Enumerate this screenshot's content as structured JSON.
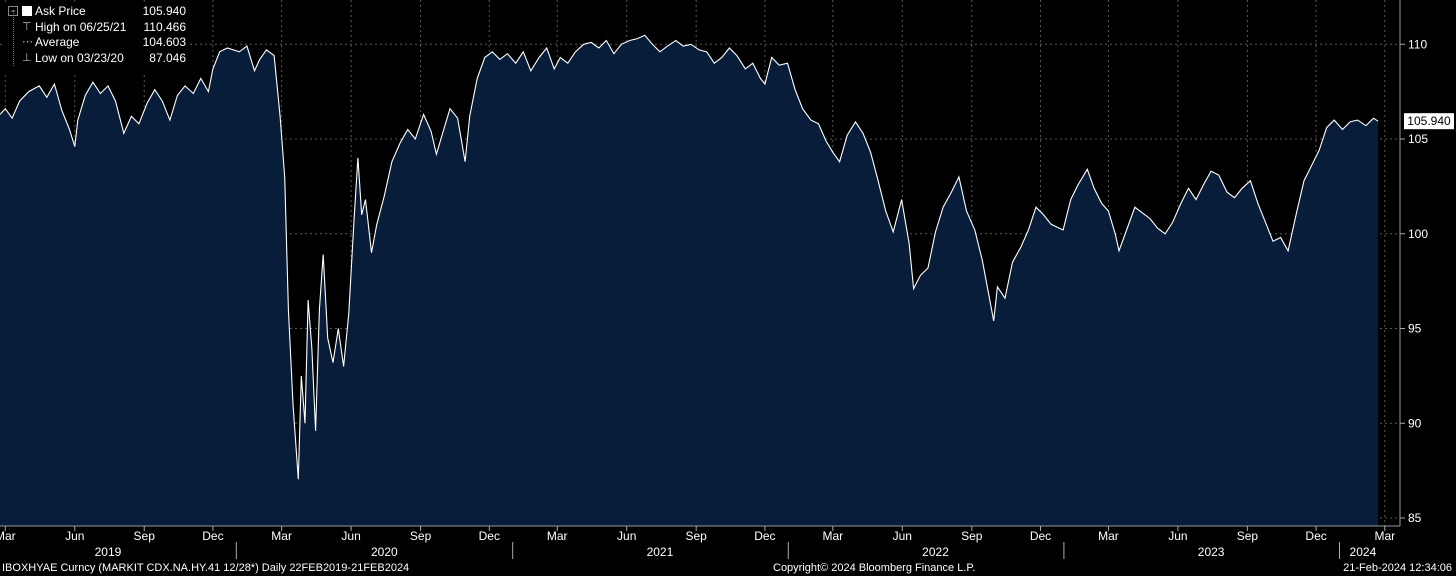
{
  "legend": {
    "ask_label": "Ask Price",
    "ask_value": "105.940",
    "high_label": "High on 06/25/21",
    "high_value": "110.466",
    "avg_label": "Average",
    "avg_value": "104.603",
    "low_label": "Low on 03/23/20",
    "low_value": "87.046"
  },
  "last_price_label": "105.940",
  "footer": {
    "left": "IBOXHYAE Curncy (MARKIT CDX.NA.HY.41 12/28*)  Daily 22FEB2019-21FEB2024",
    "center": "Copyright© 2024 Bloomberg Finance L.P.",
    "right": "21-Feb-2024 12:34:06"
  },
  "colors": {
    "background": "#000000",
    "area_fill": "#071d3a",
    "line": "#ffffff",
    "grid": "#555555"
  },
  "chart_data": {
    "type": "area",
    "title": "",
    "xlabel": "",
    "ylabel": "",
    "ylim": [
      85,
      112
    ],
    "y_ticks": [
      85,
      90,
      95,
      100,
      105,
      110
    ],
    "x_range": [
      "2019-02-22",
      "2024-02-21"
    ],
    "grid": true,
    "legend_position": "top-left",
    "x_tick_labels": [
      {
        "date": "2019-03-01",
        "label": "Mar"
      },
      {
        "date": "2019-06-01",
        "label": "Jun"
      },
      {
        "date": "2019-09-01",
        "label": "Sep"
      },
      {
        "date": "2019-12-01",
        "label": "Dec"
      },
      {
        "date": "2020-03-01",
        "label": "Mar"
      },
      {
        "date": "2020-06-01",
        "label": "Jun"
      },
      {
        "date": "2020-09-01",
        "label": "Sep"
      },
      {
        "date": "2020-12-01",
        "label": "Dec"
      },
      {
        "date": "2021-03-01",
        "label": "Mar"
      },
      {
        "date": "2021-06-01",
        "label": "Jun"
      },
      {
        "date": "2021-09-01",
        "label": "Sep"
      },
      {
        "date": "2021-12-01",
        "label": "Dec"
      },
      {
        "date": "2022-03-01",
        "label": "Mar"
      },
      {
        "date": "2022-06-01",
        "label": "Jun"
      },
      {
        "date": "2022-09-01",
        "label": "Sep"
      },
      {
        "date": "2022-12-01",
        "label": "Dec"
      },
      {
        "date": "2023-03-01",
        "label": "Mar"
      },
      {
        "date": "2023-06-01",
        "label": "Jun"
      },
      {
        "date": "2023-09-01",
        "label": "Sep"
      },
      {
        "date": "2023-12-01",
        "label": "Dec"
      },
      {
        "date": "2024-03-01",
        "label": "Mar"
      }
    ],
    "year_labels": [
      {
        "date": "2019-07-15",
        "label": "2019"
      },
      {
        "date": "2020-07-15",
        "label": "2020"
      },
      {
        "date": "2021-07-15",
        "label": "2021"
      },
      {
        "date": "2022-07-15",
        "label": "2022"
      },
      {
        "date": "2023-07-15",
        "label": "2023"
      },
      {
        "date": "2024-02-01",
        "label": "2024"
      }
    ],
    "year_dividers": [
      "2020-01-01",
      "2021-01-01",
      "2022-01-01",
      "2023-01-01",
      "2024-01-01"
    ],
    "series": [
      {
        "name": "Ask Price",
        "points": [
          [
            "2019-02-22",
            106.3
          ],
          [
            "2019-03-01",
            106.6
          ],
          [
            "2019-03-10",
            106.1
          ],
          [
            "2019-03-20",
            107.0
          ],
          [
            "2019-04-01",
            107.5
          ],
          [
            "2019-04-15",
            107.8
          ],
          [
            "2019-04-25",
            107.2
          ],
          [
            "2019-05-05",
            107.9
          ],
          [
            "2019-05-15",
            106.5
          ],
          [
            "2019-05-25",
            105.5
          ],
          [
            "2019-06-01",
            104.6
          ],
          [
            "2019-06-05",
            106.0
          ],
          [
            "2019-06-15",
            107.3
          ],
          [
            "2019-06-25",
            108.0
          ],
          [
            "2019-07-05",
            107.4
          ],
          [
            "2019-07-15",
            107.8
          ],
          [
            "2019-07-25",
            107.0
          ],
          [
            "2019-08-05",
            105.3
          ],
          [
            "2019-08-15",
            106.2
          ],
          [
            "2019-08-25",
            105.8
          ],
          [
            "2019-09-05",
            106.9
          ],
          [
            "2019-09-15",
            107.6
          ],
          [
            "2019-09-25",
            107.0
          ],
          [
            "2019-10-05",
            106.0
          ],
          [
            "2019-10-15",
            107.3
          ],
          [
            "2019-10-25",
            107.8
          ],
          [
            "2019-11-05",
            107.4
          ],
          [
            "2019-11-15",
            108.2
          ],
          [
            "2019-11-25",
            107.5
          ],
          [
            "2019-12-01",
            108.7
          ],
          [
            "2019-12-10",
            109.6
          ],
          [
            "2019-12-20",
            109.8
          ],
          [
            "2020-01-05",
            109.6
          ],
          [
            "2020-01-15",
            109.9
          ],
          [
            "2020-01-25",
            108.6
          ],
          [
            "2020-02-01",
            109.2
          ],
          [
            "2020-02-10",
            109.7
          ],
          [
            "2020-02-20",
            109.4
          ],
          [
            "2020-02-28",
            106.2
          ],
          [
            "2020-03-05",
            103.0
          ],
          [
            "2020-03-10",
            96.0
          ],
          [
            "2020-03-16",
            91.0
          ],
          [
            "2020-03-23",
            87.05
          ],
          [
            "2020-03-27",
            92.5
          ],
          [
            "2020-04-01",
            90.0
          ],
          [
            "2020-04-05",
            96.5
          ],
          [
            "2020-04-10",
            94.0
          ],
          [
            "2020-04-15",
            89.6
          ],
          [
            "2020-04-20",
            96.0
          ],
          [
            "2020-04-25",
            98.9
          ],
          [
            "2020-05-01",
            94.5
          ],
          [
            "2020-05-08",
            93.2
          ],
          [
            "2020-05-15",
            95.0
          ],
          [
            "2020-05-22",
            93.0
          ],
          [
            "2020-05-29",
            95.8
          ],
          [
            "2020-06-05",
            100.8
          ],
          [
            "2020-06-10",
            104.0
          ],
          [
            "2020-06-15",
            101.0
          ],
          [
            "2020-06-20",
            101.8
          ],
          [
            "2020-06-28",
            99.0
          ],
          [
            "2020-07-05",
            100.5
          ],
          [
            "2020-07-15",
            102.0
          ],
          [
            "2020-07-25",
            103.8
          ],
          [
            "2020-08-05",
            104.8
          ],
          [
            "2020-08-15",
            105.5
          ],
          [
            "2020-08-25",
            105.0
          ],
          [
            "2020-09-05",
            106.3
          ],
          [
            "2020-09-15",
            105.4
          ],
          [
            "2020-09-22",
            104.2
          ],
          [
            "2020-10-01",
            105.4
          ],
          [
            "2020-10-10",
            106.6
          ],
          [
            "2020-10-20",
            106.1
          ],
          [
            "2020-10-30",
            103.8
          ],
          [
            "2020-11-05",
            106.2
          ],
          [
            "2020-11-15",
            108.2
          ],
          [
            "2020-11-25",
            109.3
          ],
          [
            "2020-12-05",
            109.6
          ],
          [
            "2020-12-15",
            109.2
          ],
          [
            "2020-12-25",
            109.5
          ],
          [
            "2021-01-05",
            109.0
          ],
          [
            "2021-01-15",
            109.6
          ],
          [
            "2021-01-25",
            108.6
          ],
          [
            "2021-02-05",
            109.3
          ],
          [
            "2021-02-15",
            109.8
          ],
          [
            "2021-02-25",
            108.7
          ],
          [
            "2021-03-05",
            109.3
          ],
          [
            "2021-03-15",
            109.0
          ],
          [
            "2021-03-25",
            109.6
          ],
          [
            "2021-04-05",
            110.0
          ],
          [
            "2021-04-15",
            110.1
          ],
          [
            "2021-04-25",
            109.8
          ],
          [
            "2021-05-05",
            110.2
          ],
          [
            "2021-05-15",
            109.5
          ],
          [
            "2021-05-25",
            110.0
          ],
          [
            "2021-06-05",
            110.2
          ],
          [
            "2021-06-15",
            110.3
          ],
          [
            "2021-06-25",
            110.47
          ],
          [
            "2021-07-05",
            110.0
          ],
          [
            "2021-07-15",
            109.6
          ],
          [
            "2021-07-25",
            109.9
          ],
          [
            "2021-08-05",
            110.2
          ],
          [
            "2021-08-15",
            109.9
          ],
          [
            "2021-08-25",
            110.0
          ],
          [
            "2021-09-05",
            109.7
          ],
          [
            "2021-09-15",
            109.6
          ],
          [
            "2021-09-25",
            109.0
          ],
          [
            "2021-10-05",
            109.3
          ],
          [
            "2021-10-15",
            109.8
          ],
          [
            "2021-10-25",
            109.4
          ],
          [
            "2021-11-05",
            108.7
          ],
          [
            "2021-11-15",
            109.0
          ],
          [
            "2021-11-25",
            108.2
          ],
          [
            "2021-12-01",
            107.9
          ],
          [
            "2021-12-10",
            109.3
          ],
          [
            "2021-12-20",
            108.9
          ],
          [
            "2021-12-31",
            109.0
          ],
          [
            "2022-01-10",
            107.6
          ],
          [
            "2022-01-20",
            106.6
          ],
          [
            "2022-01-31",
            106.0
          ],
          [
            "2022-02-10",
            105.8
          ],
          [
            "2022-02-20",
            104.9
          ],
          [
            "2022-03-01",
            104.3
          ],
          [
            "2022-03-10",
            103.8
          ],
          [
            "2022-03-20",
            105.2
          ],
          [
            "2022-03-31",
            105.9
          ],
          [
            "2022-04-10",
            105.3
          ],
          [
            "2022-04-20",
            104.3
          ],
          [
            "2022-04-30",
            102.8
          ],
          [
            "2022-05-10",
            101.2
          ],
          [
            "2022-05-20",
            100.1
          ],
          [
            "2022-05-31",
            101.8
          ],
          [
            "2022-06-10",
            99.5
          ],
          [
            "2022-06-16",
            97.1
          ],
          [
            "2022-06-25",
            97.8
          ],
          [
            "2022-07-05",
            98.2
          ],
          [
            "2022-07-15",
            100.1
          ],
          [
            "2022-07-25",
            101.4
          ],
          [
            "2022-08-05",
            102.2
          ],
          [
            "2022-08-15",
            103.0
          ],
          [
            "2022-08-25",
            101.2
          ],
          [
            "2022-09-05",
            100.2
          ],
          [
            "2022-09-15",
            98.6
          ],
          [
            "2022-09-30",
            95.4
          ],
          [
            "2022-10-05",
            97.2
          ],
          [
            "2022-10-15",
            96.6
          ],
          [
            "2022-10-25",
            98.5
          ],
          [
            "2022-11-05",
            99.3
          ],
          [
            "2022-11-15",
            100.2
          ],
          [
            "2022-11-25",
            101.4
          ],
          [
            "2022-12-05",
            101.0
          ],
          [
            "2022-12-15",
            100.5
          ],
          [
            "2022-12-31",
            100.2
          ],
          [
            "2023-01-10",
            101.8
          ],
          [
            "2023-01-20",
            102.6
          ],
          [
            "2023-02-01",
            103.4
          ],
          [
            "2023-02-10",
            102.4
          ],
          [
            "2023-02-20",
            101.6
          ],
          [
            "2023-03-01",
            101.2
          ],
          [
            "2023-03-10",
            100.0
          ],
          [
            "2023-03-15",
            99.1
          ],
          [
            "2023-03-25",
            100.2
          ],
          [
            "2023-04-05",
            101.4
          ],
          [
            "2023-04-15",
            101.1
          ],
          [
            "2023-04-25",
            100.8
          ],
          [
            "2023-05-05",
            100.3
          ],
          [
            "2023-05-15",
            100.0
          ],
          [
            "2023-05-25",
            100.6
          ],
          [
            "2023-06-05",
            101.6
          ],
          [
            "2023-06-15",
            102.4
          ],
          [
            "2023-06-25",
            101.8
          ],
          [
            "2023-07-05",
            102.6
          ],
          [
            "2023-07-15",
            103.3
          ],
          [
            "2023-07-25",
            103.1
          ],
          [
            "2023-08-05",
            102.2
          ],
          [
            "2023-08-15",
            101.9
          ],
          [
            "2023-08-25",
            102.4
          ],
          [
            "2023-09-05",
            102.8
          ],
          [
            "2023-09-15",
            101.6
          ],
          [
            "2023-09-25",
            100.6
          ],
          [
            "2023-10-05",
            99.6
          ],
          [
            "2023-10-15",
            99.8
          ],
          [
            "2023-10-25",
            99.1
          ],
          [
            "2023-11-05",
            101.1
          ],
          [
            "2023-11-15",
            102.8
          ],
          [
            "2023-11-25",
            103.6
          ],
          [
            "2023-12-05",
            104.4
          ],
          [
            "2023-12-15",
            105.6
          ],
          [
            "2023-12-25",
            106.0
          ],
          [
            "2024-01-05",
            105.5
          ],
          [
            "2024-01-15",
            105.9
          ],
          [
            "2024-01-25",
            106.0
          ],
          [
            "2024-02-05",
            105.7
          ],
          [
            "2024-02-15",
            106.1
          ],
          [
            "2024-02-21",
            105.94
          ]
        ]
      }
    ]
  }
}
